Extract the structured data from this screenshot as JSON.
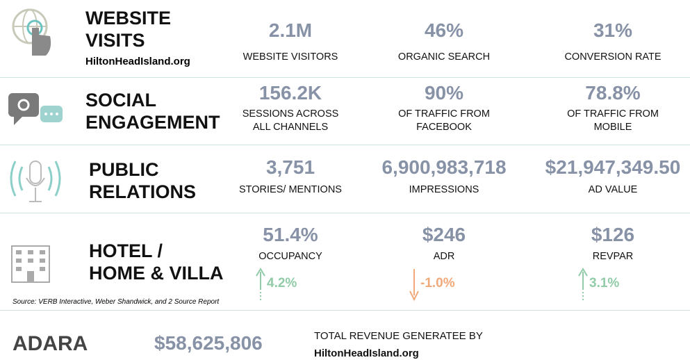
{
  "rows": [
    {
      "title": [
        "WEBSITE",
        "VISITS"
      ],
      "subtitle": "HiltonHeadIsland.org",
      "metrics": [
        {
          "value": "2.1M",
          "label": [
            "WEBSITE VISITORS"
          ]
        },
        {
          "value": "46%",
          "label": [
            "ORGANIC SEARCH"
          ]
        },
        {
          "value": "31%",
          "label": [
            "CONVERSION RATE"
          ]
        }
      ]
    },
    {
      "title": [
        "SOCIAL",
        "ENGAGEMENT"
      ],
      "metrics": [
        {
          "value": "156.2K",
          "label": [
            "SESSIONS ACROSS",
            "ALL CHANNELS"
          ]
        },
        {
          "value": "90%",
          "label": [
            "OF TRAFFIC FROM",
            "FACEBOOK"
          ]
        },
        {
          "value": "78.8%",
          "label": [
            "OF TRAFFIC FROM",
            "MOBILE"
          ]
        }
      ]
    },
    {
      "title": [
        "PUBLIC",
        "RELATIONS"
      ],
      "metrics": [
        {
          "value": "3,751",
          "label": [
            "STORIES/ MENTIONS"
          ]
        },
        {
          "value": "6,900,983,718",
          "label": [
            "IMPRESSIONS"
          ]
        },
        {
          "value": "$21,947,349.50",
          "label": [
            "AD VALUE"
          ]
        }
      ]
    },
    {
      "title": [
        "HOTEL /",
        "HOME & VILLA"
      ],
      "metrics": [
        {
          "value": "51.4%",
          "label": [
            "OCCUPANCY"
          ],
          "change": "4.2%"
        },
        {
          "value": "$246",
          "label": [
            "ADR"
          ],
          "change": "-1.0%"
        },
        {
          "value": "$126",
          "label": [
            "REVPAR"
          ],
          "change": "3.1%"
        }
      ]
    }
  ],
  "source": "Source: VERB Interactive, Weber Shandwick, and 2 Source Report",
  "footer": {
    "logo": "ADARA",
    "total": "$58,625,806",
    "caption": [
      "TOTAL REVENUE GENERATEE BY",
      "HiltonHeadIsland.org"
    ]
  }
}
